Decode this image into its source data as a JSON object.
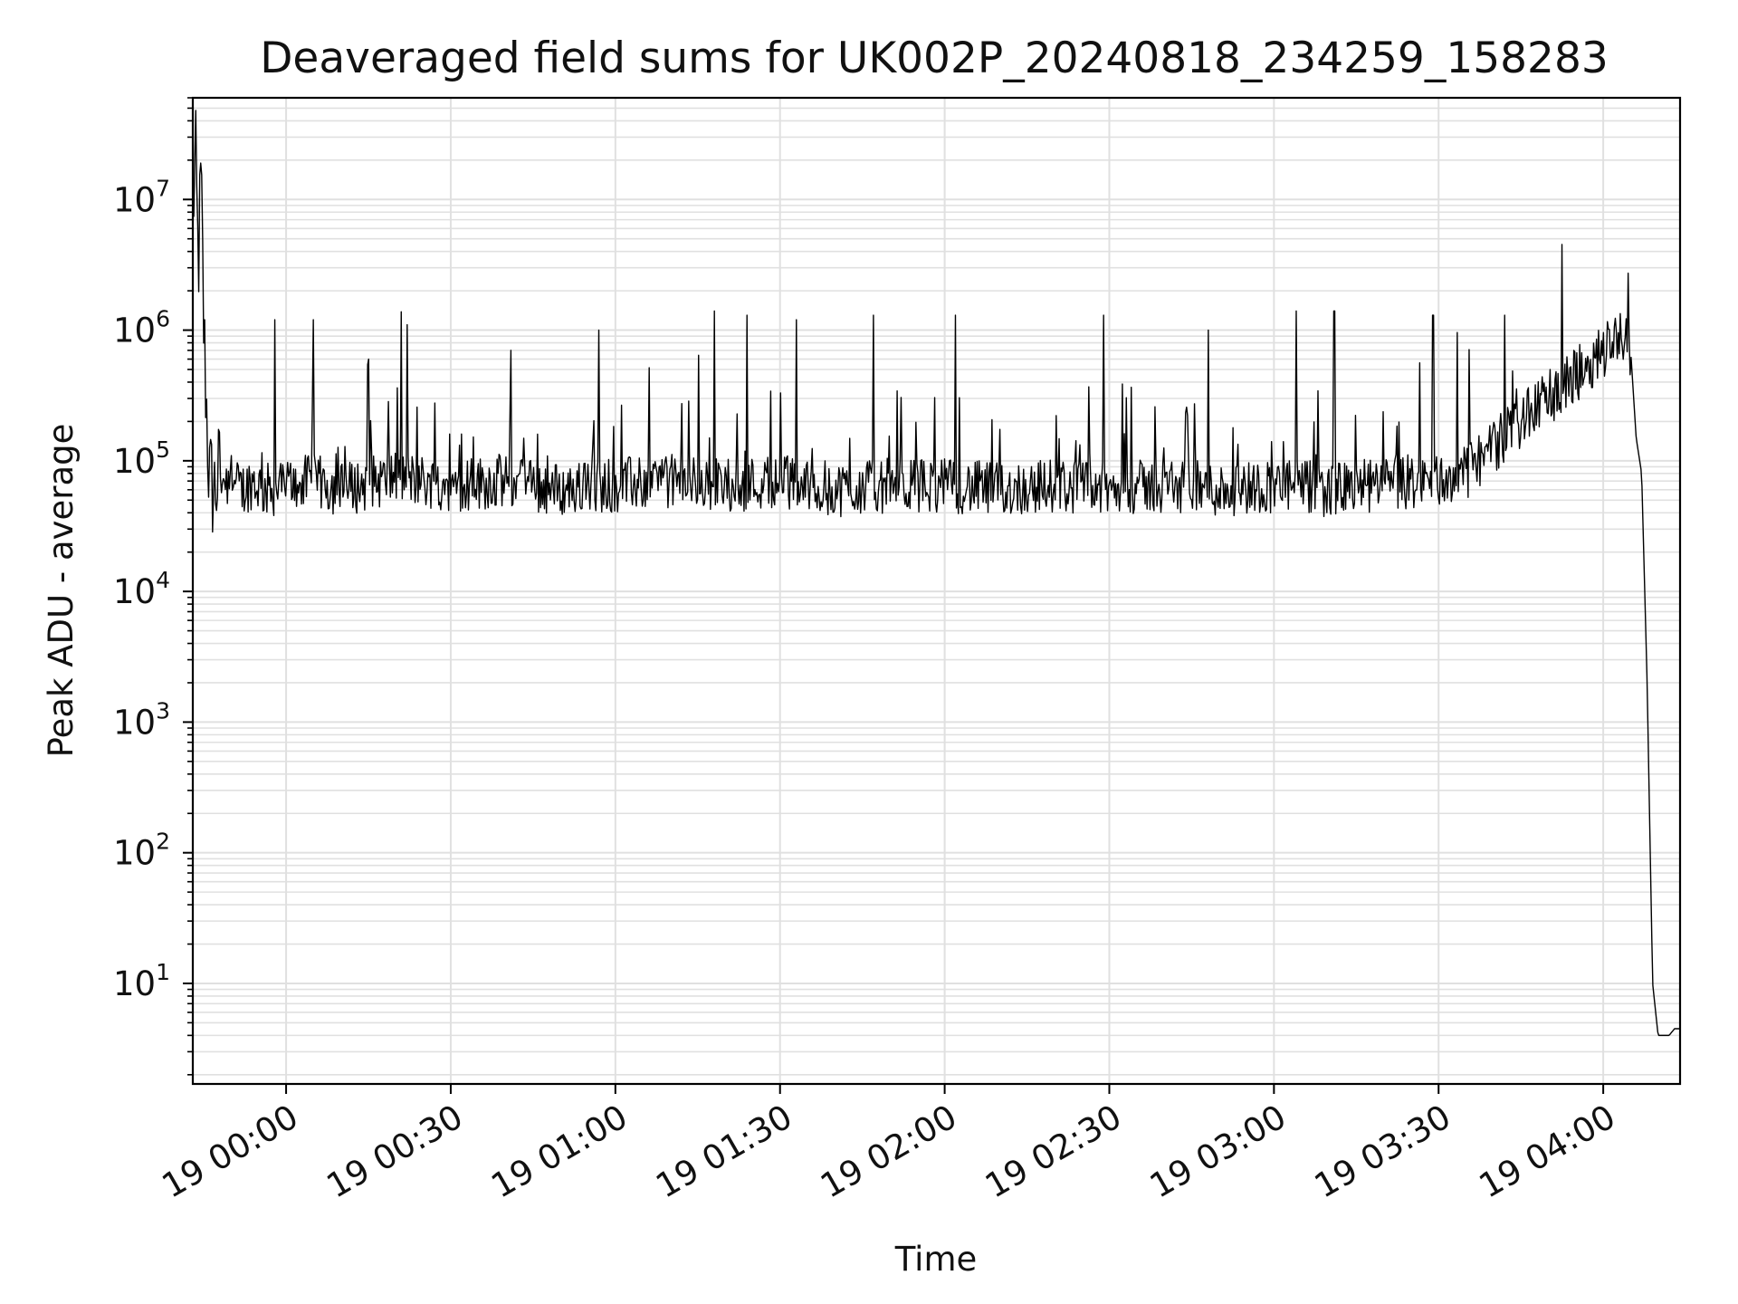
{
  "chart_data": {
    "type": "line",
    "title": "Deaveraged field sums for UK002P_20240818_234259_158283",
    "xlabel": "Time",
    "ylabel": "Peak ADU - average",
    "yscale": "log",
    "ylim": [
      1.7,
      60000000
    ],
    "xlim": [
      "18 23:43:00",
      "19 04:14:00"
    ],
    "grid": true,
    "x_ticks": [
      "19 00:00",
      "19 00:30",
      "19 01:00",
      "19 01:30",
      "19 02:00",
      "19 02:30",
      "19 03:00",
      "19 03:30",
      "19 04:00"
    ],
    "y_ticks": [
      {
        "base": "10",
        "exp": "1",
        "value": 10
      },
      {
        "base": "10",
        "exp": "2",
        "value": 100
      },
      {
        "base": "10",
        "exp": "3",
        "value": 1000
      },
      {
        "base": "10",
        "exp": "4",
        "value": 10000
      },
      {
        "base": "10",
        "exp": "5",
        "value": 100000
      },
      {
        "base": "10",
        "exp": "6",
        "value": 1000000
      },
      {
        "base": "10",
        "exp": "7",
        "value": 10000000
      }
    ],
    "line_color": "#000000",
    "grid_color": "#e0e0e0",
    "series": [
      {
        "name": "",
        "x": [
          "18 23:43",
          "18 23:43:30",
          "18 23:44",
          "18 23:44:30",
          "18 23:45",
          "18 23:46",
          "18 23:47",
          "18 23:48",
          "18 23:50",
          "18 23:52",
          "18 23:54",
          "18 23:56",
          "18 23:58",
          "19 00:00",
          "19 00:05",
          "19 00:10",
          "19 00:20",
          "19 00:30",
          "19 00:40",
          "19 00:50",
          "19 01:00",
          "19 01:10",
          "19 01:20",
          "19 01:30",
          "19 01:40",
          "19 01:50",
          "19 02:00",
          "19 02:10",
          "19 02:20",
          "19 02:30",
          "19 02:40",
          "19 02:50",
          "19 03:00",
          "19 03:10",
          "19 03:20",
          "19 03:30",
          "19 03:35",
          "19 03:40",
          "19 03:45",
          "19 03:50",
          "19 03:55",
          "19 04:00",
          "19 04:03",
          "19 04:05",
          "19 04:06",
          "19 04:07",
          "19 04:08",
          "19 04:09",
          "19 04:10",
          "19 04:11",
          "19 04:12",
          "19 04:13",
          "19 04:14"
        ],
        "y": [
          8000000,
          20000000,
          3000000,
          15000000,
          1000000,
          70000,
          60000,
          80000,
          65000,
          60000,
          70000,
          60000,
          60000,
          65000,
          70000,
          60000,
          75000,
          65000,
          70000,
          60000,
          65000,
          70000,
          65000,
          70000,
          60000,
          65000,
          65000,
          60000,
          65000,
          60000,
          65000,
          60000,
          65000,
          60000,
          65000,
          70000,
          80000,
          130000,
          200000,
          300000,
          450000,
          700000,
          1000000,
          700000,
          150000,
          80000,
          2000,
          10,
          4,
          4,
          4,
          4.5,
          4.5
        ]
      }
    ],
    "spikes": [
      {
        "t": "18 23:58",
        "y": 1200000
      },
      {
        "t": "19 00:05",
        "y": 1200000
      },
      {
        "t": "19 00:15",
        "y": 600000
      },
      {
        "t": "19 00:22",
        "y": 1100000
      },
      {
        "t": "19 00:41",
        "y": 700000
      },
      {
        "t": "19 00:57",
        "y": 1000000
      },
      {
        "t": "19 01:18",
        "y": 1400000
      },
      {
        "t": "19 01:24",
        "y": 1300000
      },
      {
        "t": "19 01:33",
        "y": 1200000
      },
      {
        "t": "19 01:47",
        "y": 1300000
      },
      {
        "t": "19 02:02",
        "y": 1300000
      },
      {
        "t": "19 02:29",
        "y": 1300000
      },
      {
        "t": "19 02:48",
        "y": 1000000
      },
      {
        "t": "19 03:04",
        "y": 1400000
      },
      {
        "t": "19 03:11",
        "y": 1400000
      },
      {
        "t": "19 03:29",
        "y": 1300000
      },
      {
        "t": "19 03:42",
        "y": 1300000
      }
    ]
  }
}
